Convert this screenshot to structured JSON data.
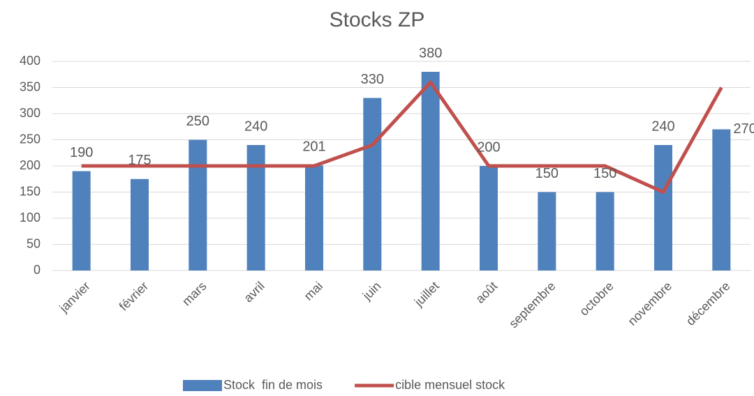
{
  "chart_data": {
    "type": "combo",
    "title": "Stocks ZP",
    "categories": [
      "janvier",
      "février",
      "mars",
      "avril",
      "mai",
      "juin",
      "juillet",
      "août",
      "septembre",
      "octobre",
      "novembre",
      "décembre"
    ],
    "series": [
      {
        "name": "Stock  fin de mois",
        "type": "bar",
        "color": "#4f81bd",
        "values": [
          190,
          175,
          250,
          240,
          201,
          330,
          380,
          200,
          150,
          150,
          240,
          270
        ]
      },
      {
        "name": "cible mensuel stock",
        "type": "line",
        "color": "#c0504d",
        "values": [
          200,
          200,
          200,
          200,
          200,
          240,
          360,
          200,
          200,
          200,
          150,
          350
        ]
      }
    ],
    "ylim": [
      0,
      400
    ],
    "yticks": [
      0,
      50,
      100,
      150,
      200,
      250,
      300,
      350,
      400
    ],
    "grid": true,
    "legend": "bottom"
  }
}
